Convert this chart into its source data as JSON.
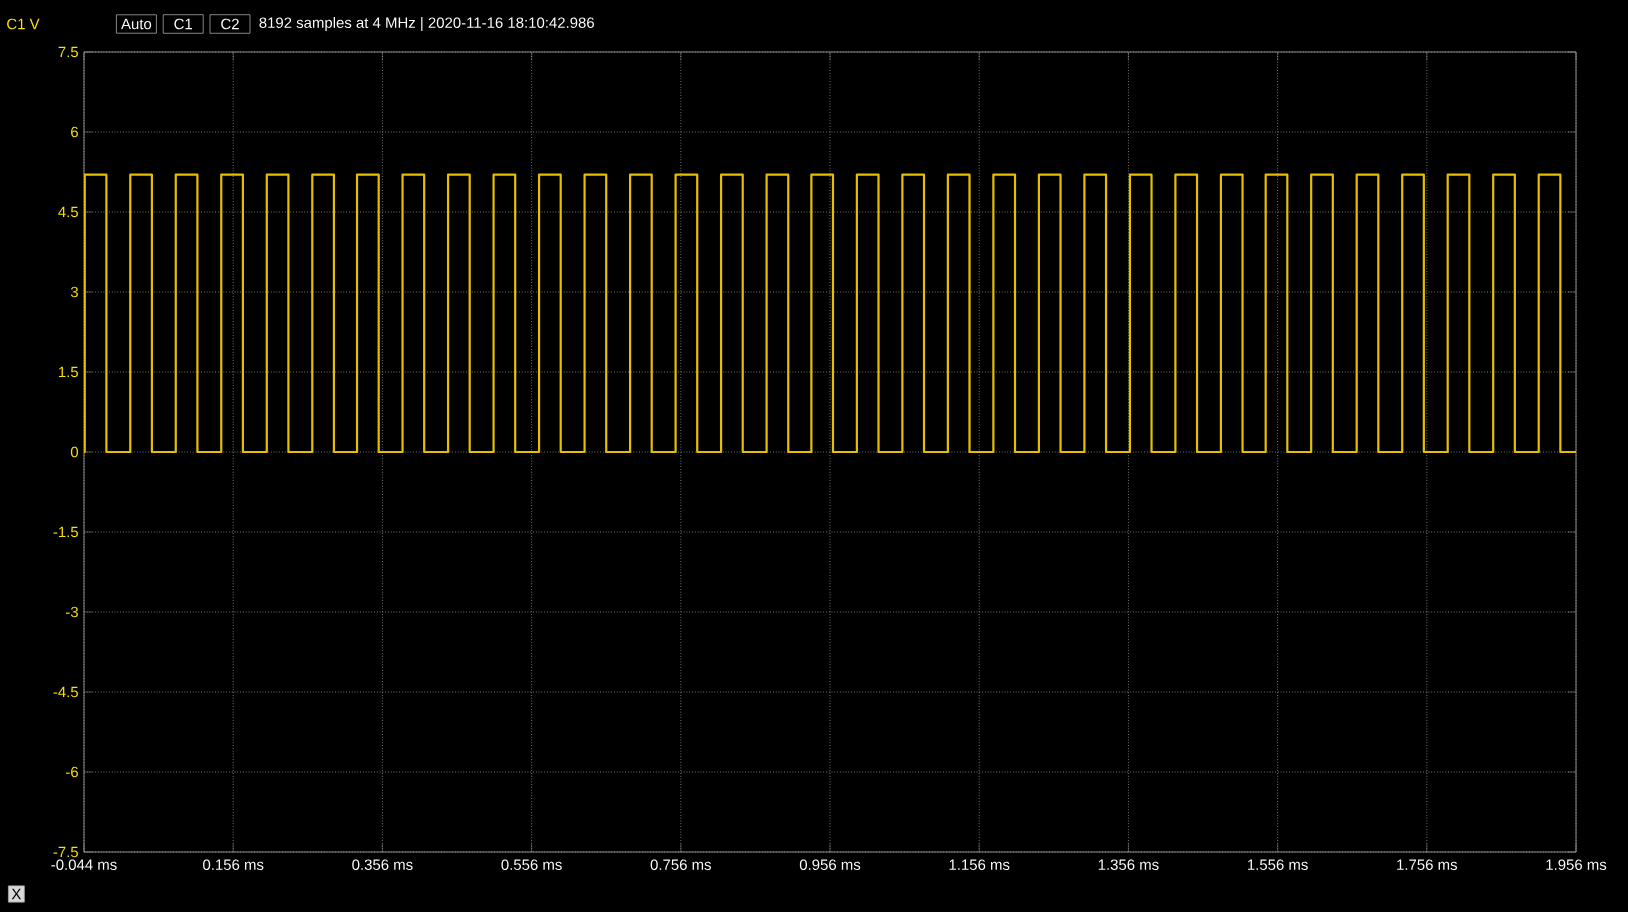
{
  "chart_data": {
    "type": "line",
    "title": "8192 samples at 4 MHz | 2020-11-16 18:10:42.986",
    "annotations": [
      "Auto",
      "C1",
      "C2"
    ],
    "xlabel": "X",
    "ylabel": "C1 V",
    "xlim": [
      -0.044,
      1.956
    ],
    "ylim": [
      -7.5,
      7.5
    ],
    "xticks": [
      {
        "value": -0.044,
        "label": "-0.044 ms"
      },
      {
        "value": 0.156,
        "label": "0.156 ms"
      },
      {
        "value": 0.356,
        "label": "0.356 ms"
      },
      {
        "value": 0.556,
        "label": "0.556 ms"
      },
      {
        "value": 0.756,
        "label": "0.756 ms"
      },
      {
        "value": 0.956,
        "label": "0.956 ms"
      },
      {
        "value": 1.156,
        "label": "1.156 ms"
      },
      {
        "value": 1.356,
        "label": "1.356 ms"
      },
      {
        "value": 1.556,
        "label": "1.556 ms"
      },
      {
        "value": 1.756,
        "label": "1.756 ms"
      },
      {
        "value": 1.956,
        "label": "1.956 ms"
      }
    ],
    "yticks": [
      -7.5,
      -6,
      -4.5,
      -3,
      -1.5,
      0,
      1.5,
      3,
      4.5,
      6,
      7.5
    ],
    "grid": true,
    "marker": "none",
    "line_style": "solid",
    "series": [
      {
        "color": "#e6c000",
        "x": [
          -0.044,
          -0.043,
          -0.043,
          -0.014,
          -0.014,
          0.018,
          0.018,
          0.047,
          0.047,
          0.079,
          0.079,
          0.108,
          0.108,
          0.14,
          0.14,
          0.169,
          0.169,
          0.201,
          0.201,
          0.23,
          0.23,
          0.262,
          0.262,
          0.291,
          0.291,
          0.322,
          0.322,
          0.351,
          0.351,
          0.383,
          0.383,
          0.412,
          0.412,
          0.444,
          0.444,
          0.473,
          0.473,
          0.505,
          0.505,
          0.534,
          0.534,
          0.566,
          0.566,
          0.595,
          0.595,
          0.627,
          0.627,
          0.656,
          0.656,
          0.688,
          0.688,
          0.717,
          0.717,
          0.749,
          0.749,
          0.778,
          0.778,
          0.81,
          0.81,
          0.839,
          0.839,
          0.871,
          0.871,
          0.9,
          0.9,
          0.931,
          0.931,
          0.96,
          0.96,
          0.992,
          0.992,
          1.021,
          1.021,
          1.053,
          1.053,
          1.082,
          1.082,
          1.114,
          1.114,
          1.143,
          1.143,
          1.175,
          1.175,
          1.204,
          1.204,
          1.236,
          1.236,
          1.265,
          1.265,
          1.297,
          1.297,
          1.326,
          1.326,
          1.358,
          1.358,
          1.387,
          1.387,
          1.419,
          1.419,
          1.448,
          1.448,
          1.48,
          1.48,
          1.509,
          1.509,
          1.54,
          1.54,
          1.569,
          1.569,
          1.601,
          1.601,
          1.63,
          1.63,
          1.662,
          1.662,
          1.691,
          1.691,
          1.723,
          1.723,
          1.752,
          1.752,
          1.784,
          1.784,
          1.813,
          1.813,
          1.845,
          1.845,
          1.874,
          1.874,
          1.906,
          1.906,
          1.935,
          1.935,
          1.956
        ],
        "values": [
          0,
          0,
          5.2,
          5.2,
          0,
          0,
          5.2,
          5.2,
          0,
          0,
          5.2,
          5.2,
          0,
          0,
          5.2,
          5.2,
          0,
          0,
          5.2,
          5.2,
          0,
          0,
          5.2,
          5.2,
          0,
          0,
          5.2,
          5.2,
          0,
          0,
          5.2,
          5.2,
          0,
          0,
          5.2,
          5.2,
          0,
          0,
          5.2,
          5.2,
          0,
          0,
          5.2,
          5.2,
          0,
          0,
          5.2,
          5.2,
          0,
          0,
          5.2,
          5.2,
          0,
          0,
          5.2,
          5.2,
          0,
          0,
          5.2,
          5.2,
          0,
          0,
          5.2,
          5.2,
          0,
          0,
          5.2,
          5.2,
          0,
          0,
          5.2,
          5.2,
          0,
          0,
          5.2,
          5.2,
          0,
          0,
          5.2,
          5.2,
          0,
          0,
          5.2,
          5.2,
          0,
          0,
          5.2,
          5.2,
          0,
          0,
          5.2,
          5.2,
          0,
          0,
          5.2,
          5.2,
          0,
          0,
          5.2,
          5.2,
          0,
          0,
          5.2,
          5.2,
          0,
          0,
          5.2,
          5.2,
          0,
          0,
          5.2,
          5.2,
          0,
          0,
          5.2,
          5.2,
          0,
          0,
          5.2,
          5.2,
          0,
          0,
          5.2,
          5.2,
          0,
          0,
          5.2,
          5.2,
          0,
          0,
          5.2,
          5.2,
          0,
          0
        ]
      }
    ]
  }
}
